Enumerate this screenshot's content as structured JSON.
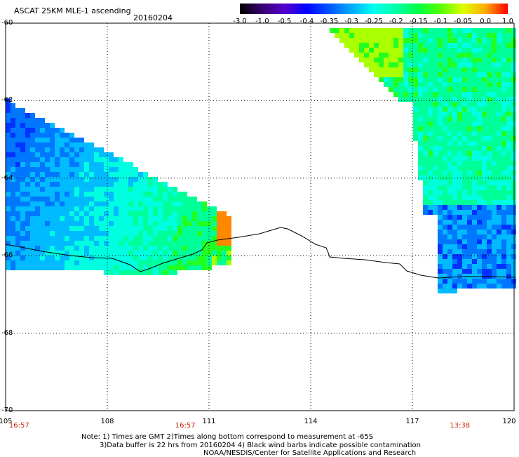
{
  "header": {
    "title": "ASCAT 25KM MLE-1 ascending",
    "date": "20160204"
  },
  "colorbar": {
    "tick_labels": [
      "-3.0",
      "-1.0",
      "-0.5",
      "-0.4",
      "-0.35",
      "-0.3",
      "-0.25",
      "-0.2",
      "-0.15",
      "-0.1",
      "-0.05",
      "0.0",
      "1.0"
    ],
    "colors": [
      "#000000",
      "#3a0070",
      "#5500cc",
      "#0000ff",
      "#0055ff",
      "#00aaff",
      "#00ffee",
      "#00ffaa",
      "#00ff44",
      "#55ff00",
      "#ddff00",
      "#ffaa00",
      "#ff0000"
    ]
  },
  "axes": {
    "lat_labels": [
      "-60",
      "-62",
      "-64",
      "-66",
      "-68",
      "-70"
    ],
    "lon_labels": [
      "105",
      "108",
      "111",
      "114",
      "117",
      "120"
    ],
    "lat_range": [
      -70,
      -60
    ],
    "lon_range": [
      105,
      120
    ]
  },
  "times": [
    {
      "label": "16:57",
      "lon": 105.4
    },
    {
      "label": "16:57",
      "lon": 110.3
    },
    {
      "label": "13:38",
      "lon": 118.4
    }
  ],
  "notes": {
    "line1": "Note: 1) Times are GMT 2)Times along bottom correspond to measurement at -65S",
    "line2": "3)Data buffer is 22 hrs from 20160204 4) Black wind barbs indicate possible contamination",
    "line3": "NOAA/NESDIS/Center for Satellite Applications and Research"
  }
}
